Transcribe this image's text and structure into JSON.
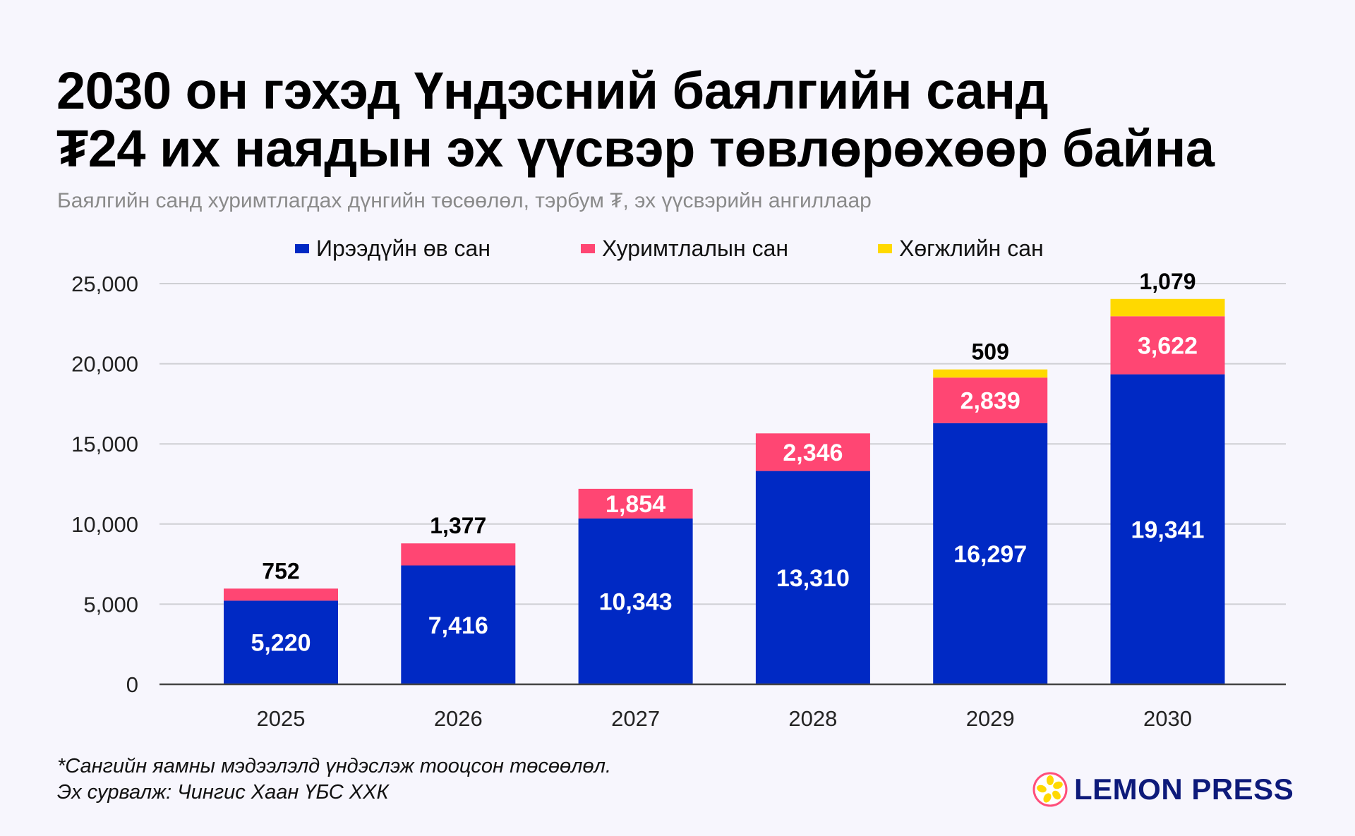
{
  "title_lines": [
    "2030 он гэхэд Үндэсний баялгийн санд",
    "₮24 их наядын эх үүсвэр төвлөрөхөөр байна"
  ],
  "subtitle": "Баялгийн санд хуримтлагдах дүнгийн төсөөлөл, тэрбум ₮, эх үүсвэрийн ангиллаар",
  "footnotes": [
    "*Сангийн яамны мэдээлэлд үндэслэж тооцсон төсөөлөл.",
    "Эх сурвалж: Чингис Хаан ҮБС ХХК"
  ],
  "logo": {
    "text": "LEMON PRESS",
    "ring_color": "#ff4f7b",
    "fruit_color": "#ffd900"
  },
  "chart_data": {
    "type": "bar",
    "stacked": true,
    "categories": [
      "2025",
      "2026",
      "2027",
      "2028",
      "2029",
      "2030"
    ],
    "series": [
      {
        "name": "Ирээдүйн өв сан",
        "color": "#0029c4",
        "values": [
          5220,
          7416,
          10343,
          13310,
          16297,
          19341
        ],
        "labels": [
          "5,220",
          "7,416",
          "10,343",
          "13,310",
          "16,297",
          "19,341"
        ]
      },
      {
        "name": "Хуримтлалын сан",
        "color": "#ff4673",
        "values": [
          752,
          1377,
          1854,
          2346,
          2839,
          3622
        ],
        "labels": [
          "752",
          "1,377",
          "1,854",
          "2,346",
          "2,839",
          "3,622"
        ]
      },
      {
        "name": "Хөгжлийн сан",
        "color": "#ffd900",
        "values": [
          0,
          0,
          0,
          0,
          509,
          1079
        ],
        "labels": [
          "",
          "",
          "",
          "",
          "509",
          "1,079"
        ]
      }
    ],
    "ylim": [
      0,
      25000
    ],
    "yticks": [
      0,
      5000,
      10000,
      15000,
      20000,
      25000
    ],
    "ytick_labels": [
      "0",
      "5,000",
      "10,000",
      "15,000",
      "20,000",
      "25,000"
    ],
    "grid": true,
    "legend": "top"
  }
}
